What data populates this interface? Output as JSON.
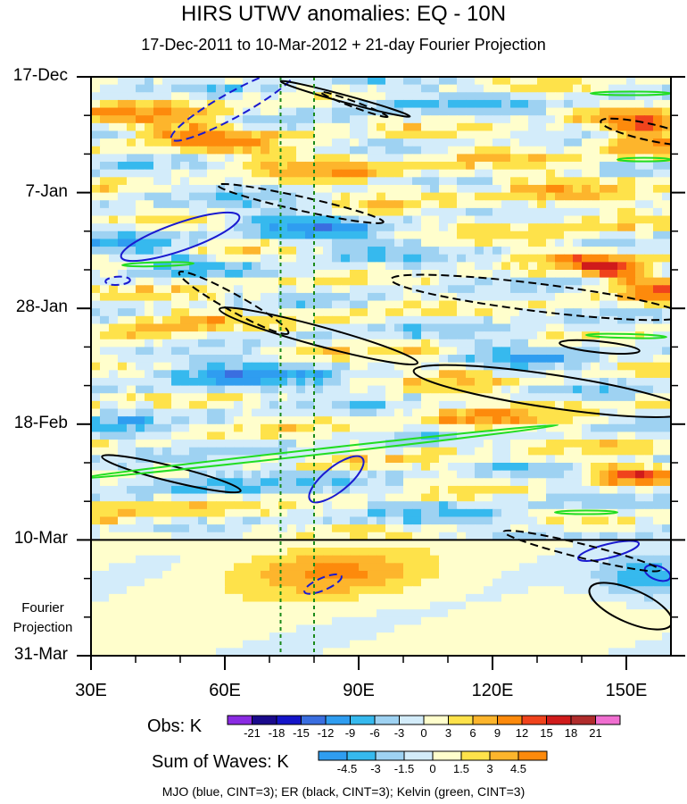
{
  "chart_data": {
    "type": "heatmap",
    "title": "HIRS UTWV anomalies: EQ - 10N",
    "subtitle": "17-Dec-2011 to 10-Mar-2012 + 21-day Fourier Projection",
    "x_axis": {
      "ticks": [
        "30E",
        "60E",
        "90E",
        "120E",
        "150E"
      ],
      "tick_values": [
        30,
        60,
        90,
        120,
        150
      ],
      "range": [
        30,
        160
      ]
    },
    "y_axis": {
      "ticks": [
        "17-Dec",
        "7-Jan",
        "28-Jan",
        "18-Feb",
        "10-Mar",
        "31-Mar"
      ],
      "tick_days": [
        0,
        21,
        42,
        63,
        84,
        105
      ],
      "range_days": [
        0,
        105
      ]
    },
    "projection_label": [
      "Fourier",
      "Projection"
    ],
    "projection_start_day": 84,
    "reference_longitudes": [
      72.5,
      80
    ],
    "obs_colorbar": {
      "label": "Obs: K",
      "levels": [
        "-21",
        "-18",
        "-15",
        "-12",
        "-9",
        "-6",
        "-3",
        "0",
        "3",
        "6",
        "9",
        "12",
        "15",
        "18",
        "21"
      ],
      "colors": [
        "#8a2be2",
        "#1a0a8c",
        "#1414c8",
        "#3a6ee0",
        "#2f9df0",
        "#36b9ee",
        "#9ed2f2",
        "#d3ecfa",
        "#fffecc",
        "#fee24a",
        "#fdb52c",
        "#fd8a0c",
        "#f0431c",
        "#d01b1b",
        "#b02c2c",
        "#f06ed0"
      ]
    },
    "wave_colorbar": {
      "label": "Sum of Waves: K",
      "levels": [
        "-4.5",
        "-3",
        "-1.5",
        "0",
        "1.5",
        "3",
        "4.5"
      ],
      "colors": [
        "#2f9df0",
        "#36b9ee",
        "#9ed2f2",
        "#d3ecfa",
        "#fffecc",
        "#fee24a",
        "#fdb52c",
        "#fd8a0c"
      ]
    },
    "contour_legend": "MJO (blue, CINT=3); ER (black, CINT=3); Kelvin (green, CINT=3)",
    "series": [
      {
        "name": "MJO",
        "color": "#1a1ad0",
        "cint": 3
      },
      {
        "name": "ER",
        "color": "#000000",
        "cint": 3
      },
      {
        "name": "Kelvin",
        "color": "#22dd22",
        "cint": 3
      }
    ],
    "contours": [
      {
        "wave": "MJO",
        "sign": "neg",
        "center": [
          62,
          5
        ],
        "len": 32,
        "wid": 4.5,
        "tilt": -0.45
      },
      {
        "wave": "MJO",
        "sign": "pos",
        "center": [
          50,
          29
        ],
        "len": 28,
        "wid": 5,
        "tilt": -0.28
      },
      {
        "wave": "MJO",
        "sign": "neg",
        "center": [
          36,
          37
        ],
        "len": 5.5,
        "wid": 1.5,
        "tilt": -0.05
      },
      {
        "wave": "MJO",
        "sign": "pos",
        "center": [
          85,
          73
        ],
        "len": 15,
        "wid": 4.5,
        "tilt": -0.65
      },
      {
        "wave": "MJO",
        "sign": "neg",
        "center": [
          82,
          92
        ],
        "len": 9,
        "wid": 2.2,
        "tilt": -0.35
      },
      {
        "wave": "MJO",
        "sign": "pos",
        "center": [
          146,
          86
        ],
        "len": 14,
        "wid": 2.5,
        "tilt": -0.2
      },
      {
        "wave": "MJO",
        "sign": "pos",
        "center": [
          157,
          90
        ],
        "len": 6,
        "wid": 2.5,
        "tilt": 0.3
      },
      {
        "wave": "ER",
        "sign": "pos",
        "center": [
          87,
          4
        ],
        "len": 30,
        "wid": 1.3,
        "tilt": 0.22
      },
      {
        "wave": "ER",
        "sign": "neg",
        "center": [
          89,
          5
        ],
        "len": 16,
        "wid": 1.0,
        "tilt": 0.3
      },
      {
        "wave": "ER",
        "sign": "neg",
        "center": [
          155,
          10
        ],
        "len": 22,
        "wid": 3,
        "tilt": 0.18
      },
      {
        "wave": "ER",
        "sign": "neg",
        "center": [
          77,
          23
        ],
        "len": 38,
        "wid": 2.5,
        "tilt": 0.18
      },
      {
        "wave": "ER",
        "sign": "neg",
        "center": [
          62,
          41
        ],
        "len": 28,
        "wid": 3,
        "tilt": 0.45
      },
      {
        "wave": "ER",
        "sign": "pos",
        "center": [
          81,
          47
        ],
        "len": 46,
        "wid": 3.5,
        "tilt": 0.22
      },
      {
        "wave": "ER",
        "sign": "neg",
        "center": [
          130,
          40
        ],
        "len": 66,
        "wid": 5,
        "tilt": 0.1
      },
      {
        "wave": "ER",
        "sign": "pos",
        "center": [
          133,
          57
        ],
        "len": 62,
        "wid": 6,
        "tilt": 0.12
      },
      {
        "wave": "ER",
        "sign": "pos",
        "center": [
          144,
          49
        ],
        "len": 18,
        "wid": 2,
        "tilt": 0.08
      },
      {
        "wave": "ER",
        "sign": "pos",
        "center": [
          48,
          72
        ],
        "len": 32,
        "wid": 2.8,
        "tilt": 0.2
      },
      {
        "wave": "ER",
        "sign": "neg",
        "center": [
          140,
          86
        ],
        "len": 36,
        "wid": 2.5,
        "tilt": 0.2
      },
      {
        "wave": "ER",
        "sign": "pos",
        "center": [
          151,
          96
        ],
        "len": 20,
        "wid": 6,
        "tilt": 0.35
      },
      {
        "wave": "Kelvin",
        "sign": "pos",
        "center": [
          81,
          68
        ],
        "len": 108,
        "wid": 1.0,
        "tilt": -0.09
      },
      {
        "wave": "Kelvin",
        "sign": "pos",
        "center": [
          45,
          34
        ],
        "len": 16,
        "wid": 0.7,
        "tilt": -0.02
      },
      {
        "wave": "Kelvin",
        "sign": "pos",
        "center": [
          150,
          47
        ],
        "len": 18,
        "wid": 0.7,
        "tilt": 0.02
      },
      {
        "wave": "Kelvin",
        "sign": "pos",
        "center": [
          141,
          79
        ],
        "len": 14,
        "wid": 0.5,
        "tilt": 0
      },
      {
        "wave": "Kelvin",
        "sign": "pos",
        "center": [
          151,
          3
        ],
        "len": 18,
        "wid": 0.5,
        "tilt": 0
      },
      {
        "wave": "Kelvin",
        "sign": "pos",
        "center": [
          154,
          15
        ],
        "len": 12,
        "wid": 0.5,
        "tilt": 0
      }
    ],
    "anomaly_features": [
      {
        "lon": 50,
        "day": 9,
        "w": 24,
        "h": 5,
        "value": 9,
        "tilt": 0.1
      },
      {
        "lon": 82,
        "day": 16,
        "w": 30,
        "h": 4,
        "value": 6,
        "tilt": 0.1
      },
      {
        "lon": 153,
        "day": 10,
        "w": 14,
        "h": 5,
        "value": 13,
        "tilt": 0.1
      },
      {
        "lon": 135,
        "day": 22,
        "w": 28,
        "h": 6,
        "value": 5,
        "tilt": 0.3
      },
      {
        "lon": 150,
        "day": 36,
        "w": 26,
        "h": 4,
        "value": 11,
        "tilt": 0.25
      },
      {
        "lon": 46,
        "day": 46,
        "w": 20,
        "h": 4,
        "value": 7,
        "tilt": -0.2
      },
      {
        "lon": 46,
        "day": 78,
        "w": 28,
        "h": 5,
        "value": 6,
        "tilt": 0
      },
      {
        "lon": 150,
        "day": 72,
        "w": 14,
        "h": 3,
        "value": 12,
        "tilt": 0.1
      },
      {
        "lon": 110,
        "day": 53,
        "w": 30,
        "h": 4,
        "value": 5,
        "tilt": 0.3
      },
      {
        "lon": 115,
        "day": 62,
        "w": 22,
        "h": 3,
        "value": 6,
        "tilt": 0.05
      },
      {
        "lon": 84,
        "day": 90,
        "w": 30,
        "h": 6,
        "value": 4,
        "tilt": 0
      },
      {
        "lon": 80,
        "day": 28,
        "w": 32,
        "h": 5,
        "value": -7,
        "tilt": 0.15
      },
      {
        "lon": 64,
        "day": 54,
        "w": 34,
        "h": 5,
        "value": -7,
        "tilt": 0.05
      },
      {
        "lon": 54,
        "day": 74,
        "w": 28,
        "h": 5,
        "value": -8,
        "tilt": 0.05
      },
      {
        "lon": 128,
        "day": 50,
        "w": 30,
        "h": 5,
        "value": -6,
        "tilt": 0.2
      },
      {
        "lon": 100,
        "day": 4,
        "w": 40,
        "h": 3,
        "value": -5,
        "tilt": 0
      },
      {
        "lon": 44,
        "day": 32,
        "w": 22,
        "h": 4,
        "value": -6,
        "tilt": 0.2
      },
      {
        "lon": 118,
        "day": 80,
        "w": 30,
        "h": 3,
        "value": -5,
        "tilt": 0
      },
      {
        "lon": 155,
        "day": 91,
        "w": 16,
        "h": 6,
        "value": -5,
        "tilt": 0
      },
      {
        "lon": 35,
        "day": 64,
        "w": 10,
        "h": 3,
        "value": -7,
        "tilt": 0
      }
    ]
  }
}
